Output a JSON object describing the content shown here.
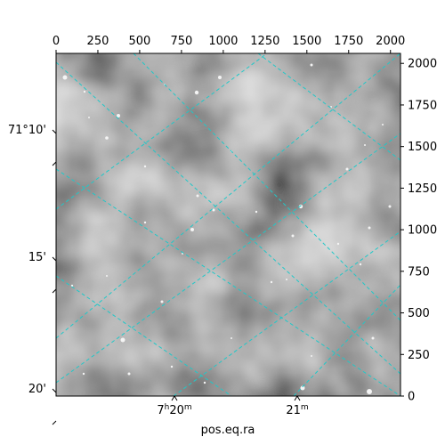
{
  "chart_data": {
    "type": "heatmap",
    "title": "",
    "xlabel": "pos.eq.ra",
    "ylabel": "",
    "pixel_axes": {
      "x_ticks": [
        0,
        250,
        500,
        750,
        1000,
        1250,
        1500,
        1750,
        2000
      ],
      "y_ticks": [
        0,
        250,
        500,
        750,
        1000,
        1250,
        1500,
        1750,
        2000
      ],
      "xlim": [
        0,
        2060
      ],
      "ylim": [
        0,
        2060
      ]
    },
    "world_axes": {
      "ra_ticks": [
        {
          "h": "7",
          "m": "20",
          "label_display": "7h20m"
        },
        {
          "h": "",
          "m": "21",
          "label_display": "21m"
        }
      ],
      "dec_ticks": [
        {
          "label": "71°10'"
        },
        {
          "label": "15'"
        },
        {
          "label": "20'"
        }
      ]
    },
    "grid": {
      "shown": true,
      "style": "dashed",
      "color": "#20c8c8"
    },
    "image": {
      "colormap": "gray",
      "description_level": "noisy star field"
    }
  }
}
